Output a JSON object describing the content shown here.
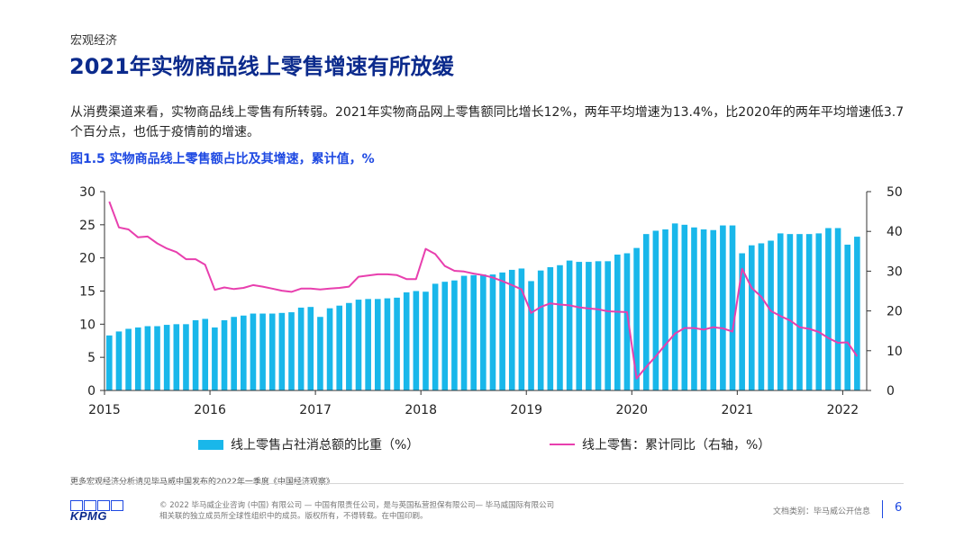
{
  "header": {
    "section": "宏观经济",
    "title": "2021年实物商品线上零售增速有所放缓"
  },
  "paragraph": "从消费渠道来看，实物商品线上零售有所转弱。2021年实物商品网上零售额同比增长12%，两年平均增速为13.4%，比2020年的两年平均增速低3.7个百分点，也低于疫情前的增速。",
  "figure_title": "图1.5 实物商品线上零售额占比及其增速，累计值，%",
  "chart_data": {
    "type": "bar",
    "title": "图1.5 实物商品线上零售额占比及其增速，累计值，%",
    "x_ticks": [
      "2015",
      "2016",
      "2017",
      "2018",
      "2019",
      "2020",
      "2021",
      "2022"
    ],
    "y_left": {
      "ticks": [
        0,
        5,
        10,
        15,
        20,
        25,
        30
      ],
      "ylim": [
        0,
        30
      ]
    },
    "y_right": {
      "ticks": [
        0,
        10,
        20,
        30,
        40,
        50
      ],
      "ylim": [
        0,
        50
      ]
    },
    "grid": false,
    "legend_position": "bottom",
    "colors": {
      "bar": "#19b7ea",
      "line": "#e83fae"
    },
    "series": [
      {
        "name": "线上零售占社消总额的比重（%）",
        "type": "bar",
        "axis": "left",
        "values": [
          8.3,
          8.9,
          9.3,
          9.5,
          9.7,
          9.7,
          9.9,
          10.0,
          10.0,
          10.6,
          10.8,
          9.5,
          10.6,
          11.1,
          11.3,
          11.6,
          11.6,
          11.6,
          11.7,
          11.8,
          12.5,
          12.6,
          11.1,
          12.4,
          12.8,
          13.2,
          13.7,
          13.8,
          13.8,
          13.9,
          14.0,
          14.8,
          15.0,
          14.9,
          16.1,
          16.4,
          16.6,
          17.3,
          17.4,
          17.5,
          17.5,
          17.8,
          18.2,
          18.4,
          16.5,
          18.1,
          18.6,
          18.9,
          19.6,
          19.4,
          19.4,
          19.5,
          19.5,
          20.5,
          20.7,
          21.5,
          23.6,
          24.1,
          24.3,
          25.2,
          25.0,
          24.6,
          24.3,
          24.2,
          24.9,
          24.9,
          20.7,
          21.9,
          22.2,
          22.6,
          23.7,
          23.6,
          23.6,
          23.6,
          23.7,
          24.5,
          24.5,
          22.0,
          23.2
        ]
      },
      {
        "name": "线上零售：累计同比（右轴，%）",
        "type": "line",
        "axis": "right",
        "values": [
          47.5,
          41.0,
          40.5,
          38.5,
          38.7,
          37.0,
          35.7,
          34.8,
          33.0,
          33.0,
          31.6,
          25.3,
          25.9,
          25.5,
          25.8,
          26.5,
          26.1,
          25.6,
          25.1,
          24.8,
          25.6,
          25.6,
          25.4,
          25.6,
          25.8,
          26.1,
          28.6,
          28.9,
          29.2,
          29.2,
          29.0,
          28.0,
          28.0,
          35.6,
          34.3,
          31.3,
          30.1,
          29.9,
          29.4,
          29.0,
          28.4,
          27.5,
          26.5,
          25.4,
          19.5,
          21.0,
          21.9,
          21.6,
          21.4,
          20.9,
          20.6,
          20.4,
          19.9,
          19.8,
          19.7,
          3.0,
          5.9,
          8.6,
          11.5,
          14.3,
          15.7,
          15.7,
          15.3,
          15.9,
          15.6,
          14.8,
          30.6,
          25.8,
          23.6,
          20.0,
          18.7,
          17.6,
          15.9,
          15.5,
          14.7,
          13.2,
          12.0,
          12.1,
          8.6
        ]
      }
    ]
  },
  "legend": {
    "bar_label": "线上零售占社消总额的比重（%）",
    "line_label": "线上零售：累计同比（右轴，%）"
  },
  "footer": {
    "footnote": "更多宏观经济分析请见毕马威中国发布的2022年一季度《中国经济观察》",
    "logo_text": "KPMG",
    "copyright_line1": "© 2022 毕马威企业咨询 (中国) 有限公司 — 中国有限责任公司，是与英国私营担保有限公司— 毕马威国际有限公司",
    "copyright_line2": "相关联的独立成员所全球性组织中的成员。版权所有，不得转载。在中国印刷。",
    "doc_type": "文档类别：毕马威公开信息",
    "page_number": "6"
  }
}
